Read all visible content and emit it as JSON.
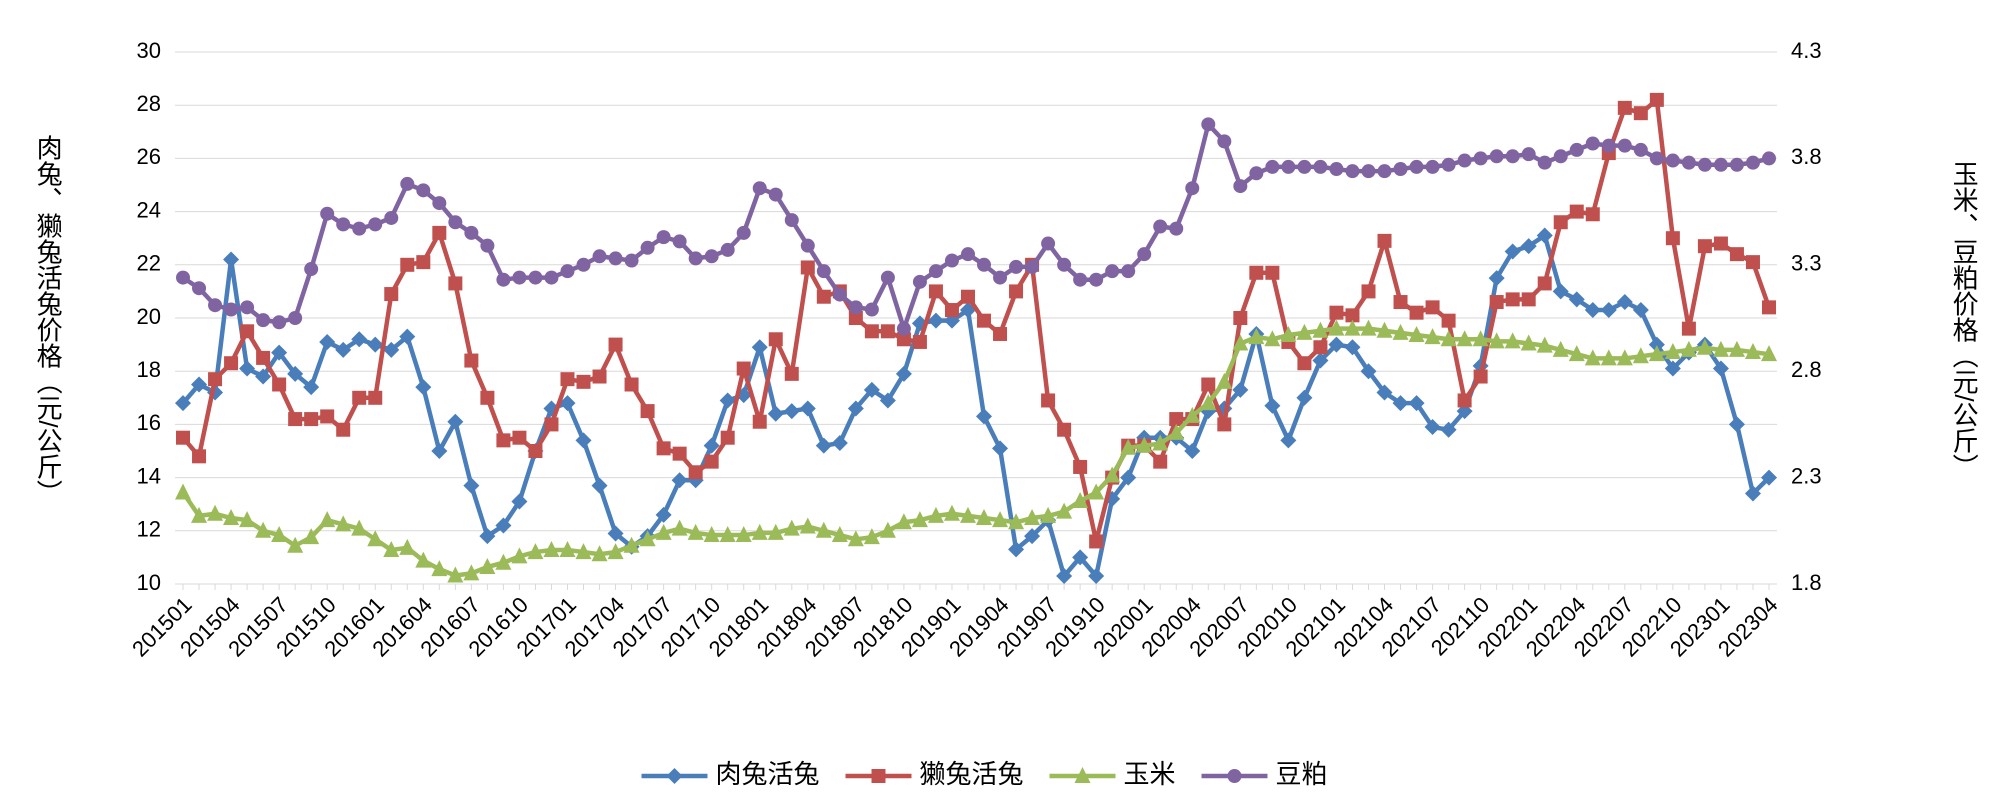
{
  "chart_data": {
    "type": "line",
    "y_label": "肉兔、獭兔活兔价格（元/公斤）",
    "y2_label": "玉米、豆粕价格（元/公斤）",
    "categories": [
      "201501",
      null,
      null,
      "201504",
      null,
      null,
      "201507",
      null,
      null,
      "201510",
      null,
      null,
      "201601",
      null,
      null,
      "201604",
      null,
      null,
      "201607",
      null,
      null,
      "201610",
      null,
      null,
      "201701",
      null,
      null,
      "201704",
      null,
      null,
      "201707",
      null,
      null,
      "201710",
      null,
      null,
      "201801",
      null,
      null,
      "201804",
      null,
      null,
      "201807",
      null,
      null,
      "201810",
      null,
      null,
      "201901",
      null,
      null,
      "201904",
      null,
      null,
      "201907",
      null,
      null,
      "201910",
      null,
      null,
      "202001",
      null,
      null,
      "202004",
      null,
      null,
      "202007",
      null,
      null,
      "202010",
      null,
      null,
      "202101",
      null,
      null,
      "202104",
      null,
      null,
      "202107",
      null,
      null,
      "202110",
      null,
      null,
      "202201",
      null,
      null,
      "202204",
      null,
      null,
      "202207",
      null,
      null,
      "202210",
      null,
      null,
      "202301",
      null,
      null,
      "202304"
    ],
    "series": [
      {
        "name": "肉兔活兔",
        "color": "#4a7ebb",
        "marker": "diamond",
        "axis": "y",
        "values": [
          16.8,
          17.5,
          17.2,
          22.2,
          18.1,
          17.8,
          18.7,
          17.9,
          17.4,
          19.1,
          18.8,
          19.2,
          19.0,
          18.8,
          19.3,
          17.4,
          15.0,
          16.1,
          13.7,
          11.8,
          12.2,
          13.1,
          15.0,
          16.6,
          16.8,
          15.4,
          13.7,
          11.9,
          11.4,
          11.8,
          12.6,
          13.9,
          13.9,
          15.2,
          16.9,
          17.1,
          18.9,
          16.4,
          16.5,
          16.6,
          15.2,
          15.3,
          16.6,
          17.3,
          16.9,
          17.9,
          19.8,
          19.9,
          19.9,
          20.3,
          16.3,
          15.1,
          11.3,
          11.8,
          12.4,
          10.3,
          11.0,
          10.3,
          13.2,
          14.0,
          15.5,
          15.5,
          15.5,
          15.0,
          16.5,
          16.6,
          17.3,
          19.4,
          16.7,
          15.4,
          17.0,
          18.4,
          19.0,
          18.9,
          18.0,
          17.2,
          16.8,
          16.8,
          15.9,
          15.8,
          16.5,
          18.2,
          21.5,
          22.5,
          22.7,
          23.1,
          21.0,
          20.7,
          20.3,
          20.3,
          20.6,
          20.3,
          19.0,
          18.1,
          18.7,
          19.0,
          18.1,
          16.0,
          13.4,
          14.0
        ]
      },
      {
        "name": "獭兔活兔",
        "color": "#c0504d",
        "marker": "square",
        "axis": "y",
        "values": [
          15.5,
          14.8,
          17.7,
          18.3,
          19.5,
          18.5,
          17.5,
          16.2,
          16.2,
          16.3,
          15.8,
          17.0,
          17.0,
          20.9,
          22.0,
          22.1,
          23.2,
          21.3,
          18.4,
          17.0,
          15.4,
          15.5,
          15.0,
          16.0,
          17.7,
          17.6,
          17.8,
          19.0,
          17.5,
          16.5,
          15.1,
          14.9,
          14.2,
          14.6,
          15.5,
          18.1,
          16.1,
          19.2,
          17.9,
          21.9,
          20.8,
          21.0,
          20.0,
          19.5,
          19.5,
          19.2,
          19.1,
          21.0,
          20.3,
          20.8,
          19.9,
          19.4,
          21.0,
          22.0,
          16.9,
          15.8,
          14.4,
          11.6,
          14.0,
          15.2,
          15.2,
          14.6,
          16.2,
          16.2,
          17.5,
          16.0,
          20.0,
          21.7,
          21.7,
          19.1,
          18.3,
          18.9,
          20.2,
          20.1,
          21.0,
          22.9,
          20.6,
          20.2,
          20.4,
          19.9,
          16.9,
          17.8,
          20.6,
          20.7,
          20.7,
          21.3,
          23.6,
          24.0,
          23.9,
          26.2,
          27.9,
          27.7,
          28.2,
          23.0,
          19.6,
          22.7,
          22.8,
          22.4,
          22.1,
          20.4
        ]
      },
      {
        "name": "玉米",
        "color": "#9bbb59",
        "marker": "triangle",
        "axis": "y2",
        "values": [
          2.23,
          2.12,
          2.13,
          2.11,
          2.1,
          2.05,
          2.03,
          1.98,
          2.02,
          2.1,
          2.08,
          2.06,
          2.01,
          1.96,
          1.97,
          1.91,
          1.87,
          1.84,
          1.85,
          1.88,
          1.9,
          1.93,
          1.95,
          1.96,
          1.96,
          1.95,
          1.94,
          1.95,
          1.98,
          2.01,
          2.04,
          2.06,
          2.04,
          2.03,
          2.03,
          2.03,
          2.04,
          2.04,
          2.06,
          2.07,
          2.05,
          2.03,
          2.01,
          2.02,
          2.05,
          2.09,
          2.1,
          2.12,
          2.13,
          2.12,
          2.11,
          2.1,
          2.09,
          2.11,
          2.12,
          2.14,
          2.19,
          2.23,
          2.31,
          2.44,
          2.45,
          2.46,
          2.51,
          2.59,
          2.65,
          2.75,
          2.93,
          2.96,
          2.95,
          2.97,
          2.98,
          2.99,
          3.0,
          3.0,
          3.0,
          2.99,
          2.98,
          2.97,
          2.96,
          2.95,
          2.95,
          2.95,
          2.94,
          2.94,
          2.93,
          2.92,
          2.9,
          2.88,
          2.86,
          2.86,
          2.86,
          2.87,
          2.88,
          2.89,
          2.9,
          2.91,
          2.9,
          2.9,
          2.89,
          2.88
        ]
      },
      {
        "name": "豆粕",
        "color": "#8064a2",
        "marker": "circle",
        "axis": "y2",
        "values": [
          3.24,
          3.19,
          3.11,
          3.09,
          3.1,
          3.04,
          3.03,
          3.05,
          3.28,
          3.54,
          3.49,
          3.47,
          3.49,
          3.52,
          3.68,
          3.65,
          3.59,
          3.5,
          3.45,
          3.39,
          3.23,
          3.24,
          3.24,
          3.24,
          3.27,
          3.3,
          3.34,
          3.33,
          3.32,
          3.38,
          3.43,
          3.41,
          3.33,
          3.34,
          3.37,
          3.45,
          3.66,
          3.63,
          3.51,
          3.39,
          3.27,
          3.16,
          3.1,
          3.09,
          3.24,
          3.0,
          3.22,
          3.27,
          3.32,
          3.35,
          3.3,
          3.24,
          3.29,
          3.29,
          3.4,
          3.3,
          3.23,
          3.23,
          3.27,
          3.27,
          3.35,
          3.48,
          3.47,
          3.66,
          3.96,
          3.88,
          3.67,
          3.73,
          3.76,
          3.76,
          3.76,
          3.76,
          3.75,
          3.74,
          3.74,
          3.74,
          3.75,
          3.76,
          3.76,
          3.77,
          3.79,
          3.8,
          3.81,
          3.81,
          3.82,
          3.78,
          3.81,
          3.84,
          3.87,
          3.86,
          3.86,
          3.84,
          3.8,
          3.79,
          3.78,
          3.77,
          3.77,
          3.77,
          3.78,
          3.8
        ]
      }
    ],
    "ylim": [
      10,
      30
    ],
    "yticks": [
      10,
      12,
      14,
      16,
      18,
      20,
      22,
      24,
      26,
      28,
      30
    ],
    "y2lim": [
      1.8,
      4.3
    ],
    "y2ticks": [
      1.8,
      2.3,
      2.8,
      3.3,
      3.8,
      4.3
    ],
    "grid": true,
    "legend": "bottom"
  }
}
